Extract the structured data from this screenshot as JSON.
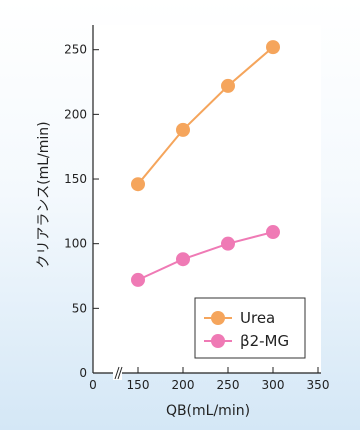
{
  "chart_data": {
    "type": "line",
    "xlabel": "QB(mL/min)",
    "ylabel": "クリアランス(mL/min)",
    "x_ticks": [
      "0",
      "150",
      "200",
      "250",
      "300",
      "350"
    ],
    "y_ticks": [
      "0",
      "50",
      "100",
      "150",
      "200",
      "250"
    ],
    "xlim": [
      0,
      350
    ],
    "ylim": [
      0,
      270
    ],
    "x_axis_break": true,
    "grid": false,
    "legend_position": "bottom-right",
    "series": [
      {
        "name": "Urea",
        "color": "#f5a55c",
        "x": [
          150,
          200,
          250,
          300
        ],
        "y": [
          146,
          188,
          222,
          252
        ]
      },
      {
        "name": "β2-MG",
        "color": "#ef7ab5",
        "x": [
          150,
          200,
          250,
          300
        ],
        "y": [
          72,
          88,
          100,
          109
        ]
      }
    ]
  }
}
